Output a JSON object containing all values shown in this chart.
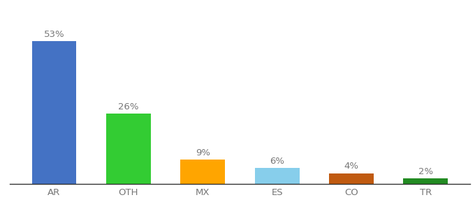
{
  "categories": [
    "AR",
    "OTH",
    "MX",
    "ES",
    "CO",
    "TR"
  ],
  "values": [
    53,
    26,
    9,
    6,
    4,
    2
  ],
  "bar_colors": [
    "#4472C4",
    "#33CC33",
    "#FFA500",
    "#87CEEB",
    "#C05A10",
    "#228B22"
  ],
  "labels": [
    "53%",
    "26%",
    "9%",
    "6%",
    "4%",
    "2%"
  ],
  "ylim": [
    0,
    62
  ],
  "background_color": "#ffffff",
  "label_fontsize": 9.5,
  "tick_fontsize": 9.5,
  "label_color": "#777777",
  "tick_color": "#777777",
  "bar_width": 0.6
}
